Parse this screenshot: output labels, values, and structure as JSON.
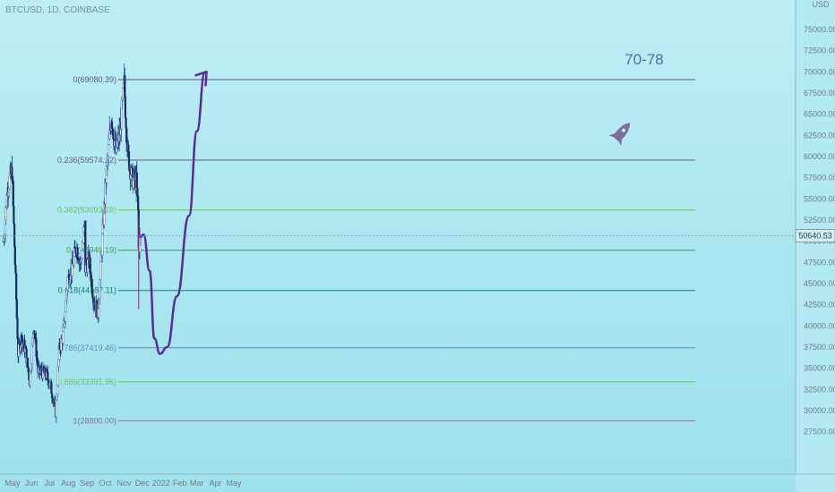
{
  "symbol_title": "BTCUSD, 1D, COINBASE",
  "chart_data": {
    "type": "candlestick",
    "symbol": "BTCUSD",
    "interval": "1D",
    "exchange": "COINBASE",
    "currency": "USD",
    "current_price": 50640.53,
    "current_price_label": "50640.53",
    "ylim": [
      26000,
      77500
    ],
    "y_ticks": [
      "27500.00",
      "30000.00",
      "32500.00",
      "35000.00",
      "37500.00",
      "40000.00",
      "42500.00",
      "45000.00",
      "47500.00",
      "50000.00",
      "52500.00",
      "55000.00",
      "57500.00",
      "60000.00",
      "62500.00",
      "65000.00",
      "67500.00",
      "70000.00",
      "72500.00",
      "75000.00"
    ],
    "x_ticks": [
      "May",
      "Jun",
      "Jul",
      "Aug",
      "Sep",
      "Oct",
      "Nov",
      "Dec",
      "2022",
      "Feb",
      "Mar",
      "Apr",
      "May"
    ],
    "fib_levels": [
      {
        "label": "0(69080.39)",
        "value": 69080.39,
        "color": "#5d5a8a"
      },
      {
        "label": "0.236(59574.22)",
        "value": 59574.22,
        "color": "#6b5a7a"
      },
      {
        "label": "0.382(53693.28)",
        "value": 53693.28,
        "color": "#6fc46f"
      },
      {
        "label": "0.5(48940.19)",
        "value": 48940.19,
        "color": "#3a9c5a"
      },
      {
        "label": "0.618(44187.11)",
        "value": 44187.11,
        "color": "#1f7a78"
      },
      {
        "label": "0.786(37419.46)",
        "value": 37419.46,
        "color": "#5a8fc0"
      },
      {
        "label": "0.886(33391.96)",
        "value": 33391.96,
        "color": "#6fc46f"
      },
      {
        "label": "1(28800.00)",
        "value": 28800.0,
        "color": "#7a7a8a"
      }
    ],
    "price_series": [
      {
        "date": "2021-04-25",
        "close": 50000
      },
      {
        "date": "2021-05-02",
        "close": 56500
      },
      {
        "date": "2021-05-09",
        "close": 58300
      },
      {
        "date": "2021-05-13",
        "close": 49500
      },
      {
        "date": "2021-05-19",
        "close": 36800
      },
      {
        "date": "2021-05-24",
        "close": 38500
      },
      {
        "date": "2021-05-31",
        "close": 37300
      },
      {
        "date": "2021-06-07",
        "close": 33500
      },
      {
        "date": "2021-06-14",
        "close": 40200
      },
      {
        "date": "2021-06-21",
        "close": 34600
      },
      {
        "date": "2021-06-28",
        "close": 34500
      },
      {
        "date": "2021-07-05",
        "close": 34200
      },
      {
        "date": "2021-07-12",
        "close": 32800
      },
      {
        "date": "2021-07-20",
        "close": 29800
      },
      {
        "date": "2021-07-26",
        "close": 37200
      },
      {
        "date": "2021-08-02",
        "close": 39200
      },
      {
        "date": "2021-08-09",
        "close": 45600
      },
      {
        "date": "2021-08-16",
        "close": 46800
      },
      {
        "date": "2021-08-23",
        "close": 49500
      },
      {
        "date": "2021-08-30",
        "close": 47200
      },
      {
        "date": "2021-09-06",
        "close": 51800
      },
      {
        "date": "2021-09-07",
        "close": 46800
      },
      {
        "date": "2021-09-13",
        "close": 47800
      },
      {
        "date": "2021-09-20",
        "close": 43500
      },
      {
        "date": "2021-09-28",
        "close": 41500
      },
      {
        "date": "2021-10-04",
        "close": 49200
      },
      {
        "date": "2021-10-11",
        "close": 57400
      },
      {
        "date": "2021-10-20",
        "close": 64900
      },
      {
        "date": "2021-10-27",
        "close": 60500
      },
      {
        "date": "2021-11-03",
        "close": 62800
      },
      {
        "date": "2021-11-10",
        "close": 68500
      },
      {
        "date": "2021-11-16",
        "close": 60300
      },
      {
        "date": "2021-11-23",
        "close": 57400
      },
      {
        "date": "2021-11-30",
        "close": 57000
      },
      {
        "date": "2021-12-03",
        "close": 53500
      },
      {
        "date": "2021-12-04",
        "close": 49000
      },
      {
        "date": "2021-12-07",
        "close": 50640
      }
    ],
    "projection_path": [
      {
        "date": "2021-12-07",
        "value": 50500
      },
      {
        "date": "2021-12-12",
        "value": 50800
      },
      {
        "date": "2021-12-22",
        "value": 46500
      },
      {
        "date": "2021-12-30",
        "value": 38500
      },
      {
        "date": "2022-01-08",
        "value": 36700
      },
      {
        "date": "2022-01-20",
        "value": 37500
      },
      {
        "date": "2022-02-05",
        "value": 43500
      },
      {
        "date": "2022-02-25",
        "value": 53000
      },
      {
        "date": "2022-03-10",
        "value": 63000
      },
      {
        "date": "2022-03-23",
        "value": 69900
      }
    ],
    "annotation": "70-78"
  }
}
